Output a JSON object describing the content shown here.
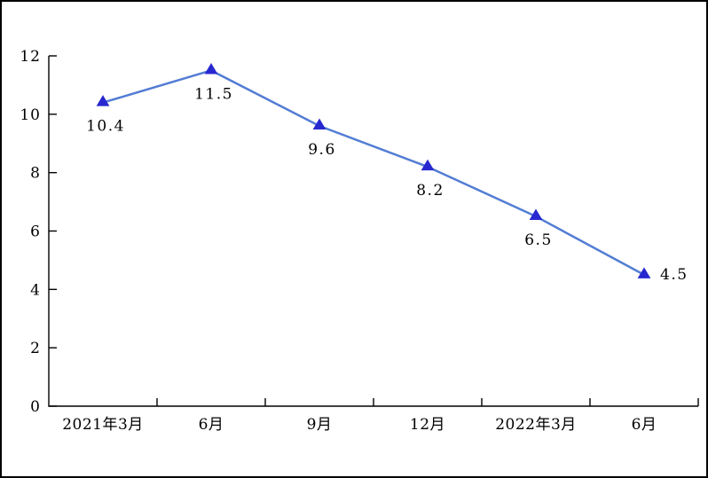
{
  "page": {
    "background": "#ffffff",
    "border_color": "#000000"
  },
  "chart_data": {
    "type": "line",
    "title": "",
    "categories": [
      "2021年3月",
      "6月",
      "9月",
      "12月",
      "2022年3月",
      "6月"
    ],
    "series": [
      {
        "name": "",
        "values": [
          10.4,
          11.5,
          9.6,
          8.2,
          6.5,
          4.5
        ]
      }
    ],
    "data_labels": [
      "10.4",
      "11.5",
      "9.6",
      "8.2",
      "6.5",
      "4.5"
    ],
    "label_positions": [
      "below",
      "below",
      "below",
      "below",
      "below",
      "right"
    ],
    "xlabel": "",
    "ylabel": "",
    "ylim": [
      0,
      12
    ],
    "yticks": [
      0,
      2,
      4,
      6,
      8,
      10,
      12
    ],
    "grid": false,
    "legend": "none",
    "tick_style": "inside",
    "marker_shape": "triangle-up",
    "line_color": "#537dd4",
    "marker_color": "#2828d0",
    "axis_color": "#000000",
    "text_color": "#000000"
  }
}
